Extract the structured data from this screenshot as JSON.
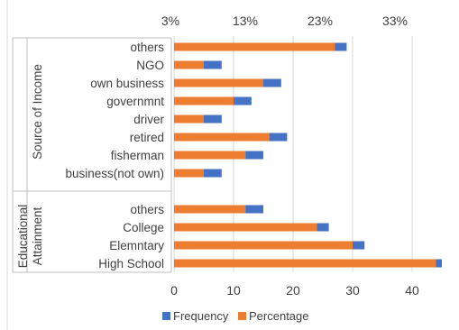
{
  "chart_data": {
    "type": "bar",
    "orientation": "horizontal",
    "stacked": true,
    "groups": [
      {
        "name": "Source of Income",
        "categories": [
          "others",
          "NGO",
          "own business",
          "governmnt",
          "driver",
          "retired",
          "fisherman",
          "business(not own)"
        ]
      },
      {
        "name": "Educational Attainment",
        "categories": [
          "others",
          "College",
          "Elemntary",
          "High School"
        ]
      }
    ],
    "categories": [
      "others",
      "NGO",
      "own business",
      "governmnt",
      "driver",
      "retired",
      "fisherman",
      "business(not own)",
      "others",
      "College",
      "Elemntary",
      "High School"
    ],
    "series": [
      {
        "name": "Frequency",
        "color": "#4472C4",
        "values": [
          2,
          3,
          3,
          3,
          3,
          3,
          3,
          3,
          3,
          2,
          2,
          1
        ]
      },
      {
        "name": "Percentage",
        "color": "#ED7D31",
        "values": [
          27,
          5,
          15,
          10,
          5,
          16,
          12,
          5,
          12,
          24,
          30,
          44
        ]
      }
    ],
    "x_axis_bottom": {
      "ticks": [
        0,
        10,
        20,
        30,
        40
      ],
      "range": [
        0,
        45
      ]
    },
    "x_axis_top": {
      "tick_labels": [
        "3%",
        "13%",
        "23%",
        "33%"
      ]
    },
    "grid": true,
    "legend": {
      "position": "bottom",
      "entries": [
        "Frequency",
        "Percentage"
      ]
    }
  }
}
